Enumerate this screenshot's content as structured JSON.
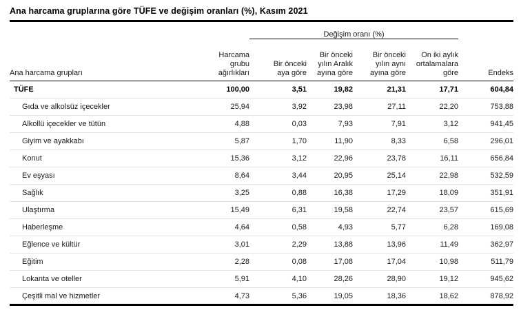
{
  "title": "Ana harcama gruplarına göre TÜFE ve değişim oranları (%), Kasım 2021",
  "table": {
    "span_header": "Değişim oranı (%)",
    "headers": {
      "group": "Ana harcama grupları",
      "weight": "Harcama\ngrubu\nağırlıkları",
      "monthly": "Bir önceki\naya göre",
      "vs_prev_december": "Bir önceki\nyılın Aralık\nayına göre",
      "vs_same_month_prev_year": "Bir önceki\nyılın aynı\nayına göre",
      "twelve_month_avg": "On iki aylık\nortalamalara\ngöre",
      "index": "Endeks"
    },
    "rows": [
      {
        "label": "TÜFE",
        "bold": true,
        "indent": false,
        "values": [
          "100,00",
          "3,51",
          "19,82",
          "21,31",
          "17,71",
          "604,84"
        ]
      },
      {
        "label": "Gıda ve alkolsüz içecekler",
        "bold": false,
        "indent": true,
        "values": [
          "25,94",
          "3,92",
          "23,98",
          "27,11",
          "22,20",
          "753,88"
        ]
      },
      {
        "label": "Alkollü içecekler ve tütün",
        "bold": false,
        "indent": true,
        "values": [
          "4,88",
          "0,03",
          "7,93",
          "7,91",
          "3,12",
          "941,45"
        ]
      },
      {
        "label": "Giyim ve ayakkabı",
        "bold": false,
        "indent": true,
        "values": [
          "5,87",
          "1,70",
          "11,90",
          "8,33",
          "6,58",
          "296,01"
        ]
      },
      {
        "label": "Konut",
        "bold": false,
        "indent": true,
        "values": [
          "15,36",
          "3,12",
          "22,96",
          "23,78",
          "16,11",
          "656,84"
        ]
      },
      {
        "label": "Ev eşyası",
        "bold": false,
        "indent": true,
        "values": [
          "8,64",
          "3,44",
          "20,95",
          "25,14",
          "22,98",
          "532,59"
        ]
      },
      {
        "label": "Sağlık",
        "bold": false,
        "indent": true,
        "values": [
          "3,25",
          "0,88",
          "16,38",
          "17,29",
          "18,09",
          "351,91"
        ]
      },
      {
        "label": "Ulaştırma",
        "bold": false,
        "indent": true,
        "values": [
          "15,49",
          "6,31",
          "19,58",
          "22,74",
          "23,57",
          "615,69"
        ]
      },
      {
        "label": "Haberleşme",
        "bold": false,
        "indent": true,
        "values": [
          "4,64",
          "0,58",
          "4,93",
          "5,77",
          "6,28",
          "169,08"
        ]
      },
      {
        "label": "Eğlence ve kültür",
        "bold": false,
        "indent": true,
        "values": [
          "3,01",
          "2,29",
          "13,88",
          "13,96",
          "11,49",
          "362,97"
        ]
      },
      {
        "label": "Eğitim",
        "bold": false,
        "indent": true,
        "values": [
          "2,28",
          "0,08",
          "17,08",
          "17,04",
          "10,98",
          "511,79"
        ]
      },
      {
        "label": "Lokanta ve oteller",
        "bold": false,
        "indent": true,
        "values": [
          "5,91",
          "4,10",
          "28,26",
          "28,90",
          "19,12",
          "945,62"
        ]
      },
      {
        "label": "Çeşitli mal ve hizmetler",
        "bold": false,
        "indent": true,
        "values": [
          "4,73",
          "5,36",
          "19,05",
          "18,36",
          "18,62",
          "878,92"
        ]
      }
    ]
  },
  "colors": {
    "text": "#1a1a1a",
    "rule": "#000000",
    "row_divider": "#e4e4e4",
    "background": "#ffffff"
  }
}
